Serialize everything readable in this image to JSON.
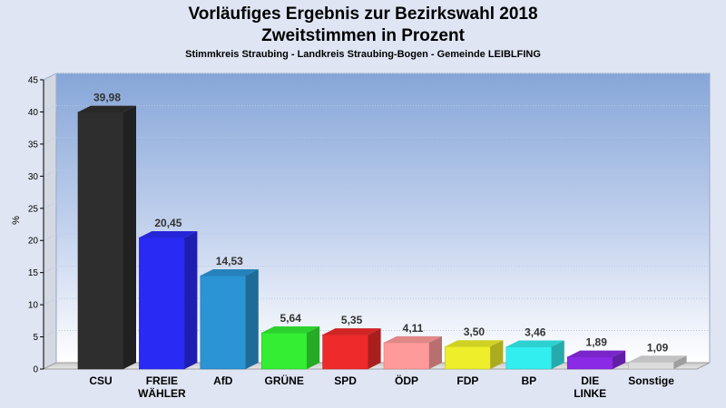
{
  "chart_data": {
    "type": "bar",
    "title_line1": "Vorläufiges Ergebnis zur Bezirkswahl 2018",
    "title_line2": "Zweitstimmen in Prozent",
    "subtitle": "Stimmkreis Straubing - Landkreis Straubing-Bogen - Gemeinde LEIBLFING",
    "ylabel": "%",
    "ylim": [
      0,
      45
    ],
    "yticks": [
      0,
      5,
      10,
      15,
      20,
      25,
      30,
      35,
      40,
      45
    ],
    "categories": [
      "CSU",
      "FREIE WÄHLER",
      "AfD",
      "GRÜNE",
      "SPD",
      "ÖDP",
      "FDP",
      "BP",
      "DIE LINKE",
      "Sonstige"
    ],
    "category_lines": [
      [
        "CSU"
      ],
      [
        "FREIE",
        "WÄHLER"
      ],
      [
        "AfD"
      ],
      [
        "GRÜNE"
      ],
      [
        "SPD"
      ],
      [
        "ÖDP"
      ],
      [
        "FDP"
      ],
      [
        "BP"
      ],
      [
        "DIE",
        "LINKE"
      ],
      [
        "Sonstige"
      ]
    ],
    "values": [
      39.98,
      20.45,
      14.53,
      5.64,
      5.35,
      4.11,
      3.5,
      3.46,
      1.89,
      1.09
    ],
    "value_labels": [
      "39,98",
      "20,45",
      "14,53",
      "5,64",
      "5,35",
      "4,11",
      "3,50",
      "3,46",
      "1,89",
      "1,09"
    ],
    "colors": [
      "#2e2e2e",
      "#2a2af5",
      "#2a94d4",
      "#33ee33",
      "#ee2a2a",
      "#ff9a9a",
      "#eeee2a",
      "#33eeee",
      "#8a2ae6",
      "#dcdcdc"
    ],
    "grid": true,
    "legend": "none"
  }
}
